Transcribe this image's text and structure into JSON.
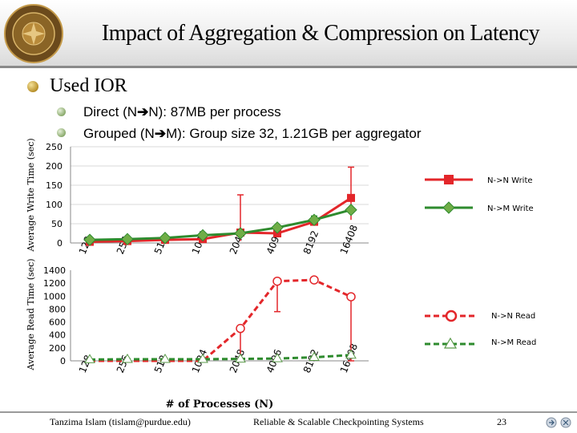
{
  "slide": {
    "title": "Impact of Aggregation & Compression on Latency",
    "bullet_main": "Used IOR",
    "sub1_pre": "Direct (N",
    "sub1_post": "N): 87MB per process",
    "sub2_pre": "Grouped (N",
    "sub2_post": "M): Group size 32, 1.21GB per aggregator",
    "logo_text": "purdue university"
  },
  "footer": {
    "author": "Tanzima Islam (tislam@purdue.edu)",
    "center": "Reliable & Scalable Checkpointing Systems",
    "page": "23"
  },
  "colors": {
    "red": "#e3262a",
    "green": "#2e8b2e",
    "greenMarker": "#70ad47"
  },
  "chart_data": [
    {
      "type": "line",
      "categories": [
        "128",
        "256",
        "512",
        "1024",
        "2048",
        "4096",
        "8192",
        "16408"
      ],
      "ylabel": "Average Write Time (sec)",
      "ylim": [
        0,
        250
      ],
      "yticks": [
        0,
        50,
        100,
        150,
        200,
        250
      ],
      "series": [
        {
          "name": "N->N Write",
          "values": [
            3,
            5,
            8,
            10,
            27,
            25,
            55,
            117
          ],
          "err_low": [
            3,
            5,
            8,
            10,
            5,
            25,
            55,
            60
          ],
          "err_high": [
            3,
            5,
            8,
            10,
            125,
            25,
            55,
            197
          ]
        },
        {
          "name": "N->M Write",
          "values": [
            8,
            10,
            13,
            20,
            25,
            40,
            60,
            86
          ],
          "err_low": [
            8,
            10,
            13,
            20,
            25,
            40,
            50,
            86
          ],
          "err_high": [
            8,
            10,
            13,
            20,
            25,
            40,
            70,
            86
          ]
        }
      ]
    },
    {
      "type": "line",
      "categories": [
        "128",
        "256",
        "512",
        "1024",
        "2048",
        "4096",
        "8192",
        "16408"
      ],
      "xlabel": "# of Processes (N)",
      "ylabel": "Average Read Time (sec)",
      "ylim": [
        0,
        1400
      ],
      "yticks": [
        0,
        200,
        400,
        600,
        800,
        1000,
        1200,
        1400
      ],
      "series": [
        {
          "name": "N->N Read",
          "values": [
            0,
            0,
            0,
            0,
            500,
            1230,
            1250,
            990
          ],
          "err_low": [
            0,
            0,
            0,
            0,
            0,
            760,
            1250,
            0
          ],
          "err_high": [
            0,
            0,
            0,
            0,
            500,
            1230,
            1250,
            990
          ]
        },
        {
          "name": "N->M Read",
          "values": [
            20,
            25,
            25,
            25,
            30,
            35,
            55,
            90
          ]
        }
      ]
    }
  ]
}
